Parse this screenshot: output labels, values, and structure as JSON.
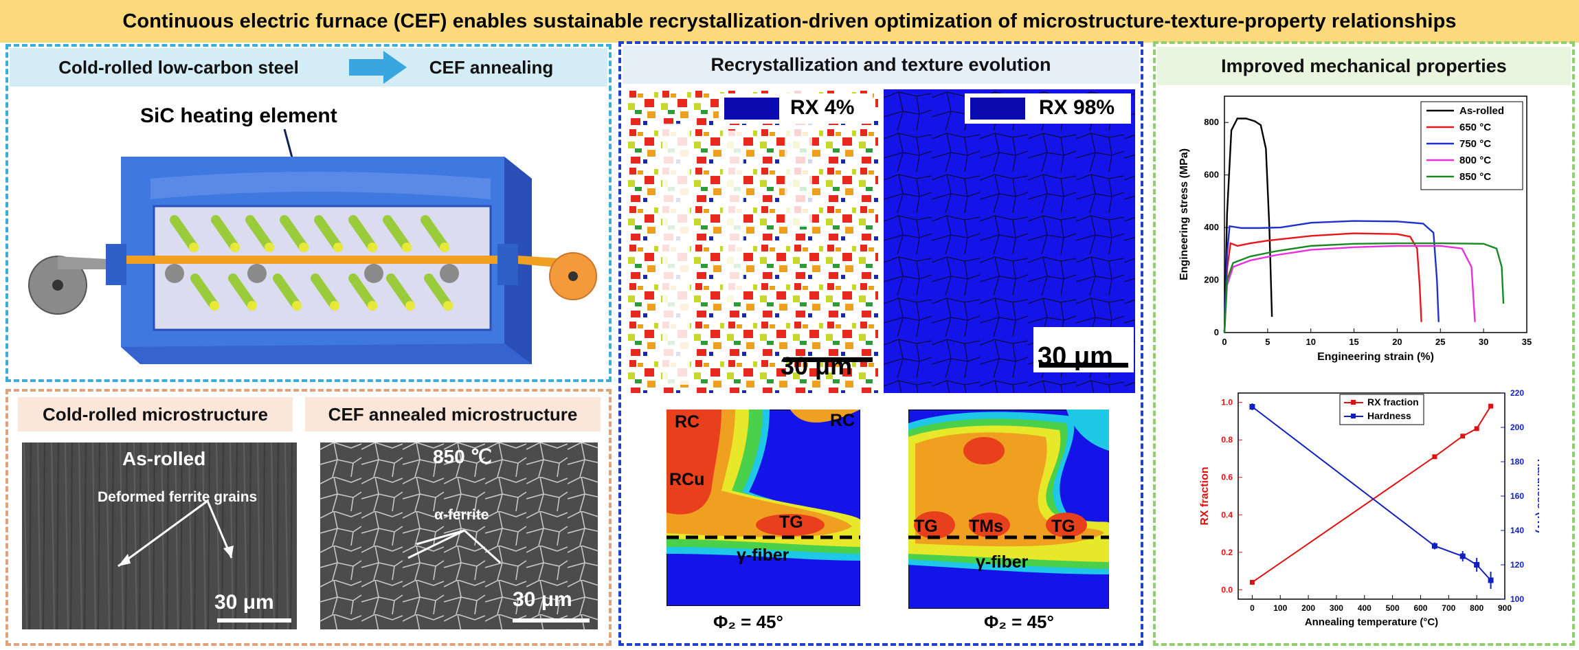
{
  "title": "Continuous electric furnace (CEF) enables sustainable recrystallization-driven optimization of microstructure-texture-property relationships",
  "panel_process": {
    "header_left": "Cold-rolled low-carbon steel",
    "header_right": "CEF annealing",
    "heating_label": "SiC heating element"
  },
  "panel_micro": {
    "left_header": "Cold-rolled microstructure",
    "right_header": "CEF annealed microstructure",
    "left_sample": "As-rolled",
    "left_annotation": "Deformed ferrite grains",
    "right_sample": "850 ℃",
    "right_annotation": "α-ferrite",
    "scale_left": "30 μm",
    "scale_right": "30 μm"
  },
  "panel_rx": {
    "header": "Recrystallization and texture evolution",
    "ebsd_left_label": "RX 4%",
    "ebsd_right_label": "RX 98%",
    "scale_left": "30 μm",
    "scale_right": "30 μm",
    "odf_left_labels": [
      "RC",
      "RC",
      "RCu",
      "TG",
      "γ-fiber"
    ],
    "odf_right_labels": [
      "TG",
      "TMs",
      "TG",
      "γ-fiber"
    ],
    "odf_left_caption": "Φ₂ = 45°",
    "odf_right_caption": "Φ₂ = 45°"
  },
  "panel_props": {
    "header": "Improved mechanical properties"
  },
  "colors": {
    "title_bg": "#fcd97a",
    "process_border": "#3aaed8",
    "micro_border": "#e0a27a",
    "rx_border": "#1f43c8",
    "props_border": "#8fcf6e",
    "furnace_blue": "#3f78e0",
    "rod_green": "#b6e04a"
  },
  "chart_data": [
    {
      "type": "line",
      "title": "",
      "xlabel": "Engineering strain (%)",
      "ylabel": "Engineering stress (MPa)",
      "xlim": [
        0,
        35
      ],
      "ylim": [
        0,
        900
      ],
      "xticks": [
        0,
        5,
        10,
        15,
        20,
        25,
        30,
        35
      ],
      "yticks": [
        0,
        200,
        400,
        600,
        800
      ],
      "legend_position": "top-right",
      "series": [
        {
          "name": "As-rolled",
          "color": "#000000",
          "x": [
            0,
            0.3,
            0.8,
            1.5,
            2.5,
            3.5,
            4.2,
            4.8,
            5.2,
            5.5
          ],
          "y": [
            0,
            450,
            770,
            815,
            815,
            805,
            790,
            700,
            400,
            60
          ]
        },
        {
          "name": "650 °C",
          "color": "#e8141c",
          "x": [
            0,
            0.3,
            0.7,
            1.5,
            3,
            5,
            10,
            15,
            20,
            21.5,
            22.3,
            22.6,
            22.8
          ],
          "y": [
            0,
            240,
            340,
            330,
            340,
            350,
            368,
            378,
            375,
            365,
            320,
            180,
            40
          ]
        },
        {
          "name": "750 °C",
          "color": "#1f2fd0",
          "x": [
            0,
            0.3,
            0.6,
            2,
            4,
            6.5,
            10,
            15,
            20,
            23,
            24.2,
            24.6,
            24.8
          ],
          "y": [
            0,
            300,
            405,
            398,
            398,
            400,
            418,
            425,
            423,
            415,
            380,
            200,
            40
          ]
        },
        {
          "name": "800 °C",
          "color": "#e82fe0",
          "x": [
            0,
            0.3,
            1,
            3,
            6,
            10,
            15,
            20,
            25,
            27.5,
            28.6,
            29
          ],
          "y": [
            0,
            180,
            250,
            275,
            295,
            315,
            325,
            330,
            330,
            320,
            250,
            40
          ]
        },
        {
          "name": "850 °C",
          "color": "#168a20",
          "x": [
            0,
            0.3,
            1,
            3,
            6,
            10,
            15,
            20,
            25,
            30,
            31.5,
            32.1,
            32.3
          ],
          "y": [
            0,
            200,
            265,
            290,
            310,
            330,
            338,
            340,
            340,
            338,
            320,
            250,
            110
          ]
        }
      ]
    },
    {
      "type": "line",
      "title": "",
      "xlabel": "Annealing temperature (°C)",
      "ylabel": "RX fraction",
      "y2label": "Hardness (Hv)",
      "xlim": [
        -50,
        900
      ],
      "ylim": [
        -0.05,
        1.05
      ],
      "y2lim": [
        100,
        220
      ],
      "xticks": [
        0,
        100,
        200,
        300,
        400,
        500,
        600,
        700,
        800,
        900
      ],
      "yticks": [
        0.0,
        0.2,
        0.4,
        0.6,
        0.8,
        1.0
      ],
      "y2ticks": [
        100,
        120,
        140,
        160,
        180,
        200,
        220
      ],
      "legend_position": "top-center",
      "series": [
        {
          "name": "RX fraction",
          "axis": "left",
          "color": "#e01010",
          "x": [
            0,
            650,
            750,
            800,
            850
          ],
          "y": [
            0.04,
            0.71,
            0.82,
            0.86,
            0.98
          ]
        },
        {
          "name": "Hardness",
          "axis": "right",
          "color": "#1020c0",
          "x": [
            0,
            650,
            750,
            800,
            850
          ],
          "y": [
            212,
            131,
            125,
            120,
            111
          ],
          "err": [
            2,
            2,
            3,
            4,
            5
          ]
        }
      ]
    }
  ]
}
